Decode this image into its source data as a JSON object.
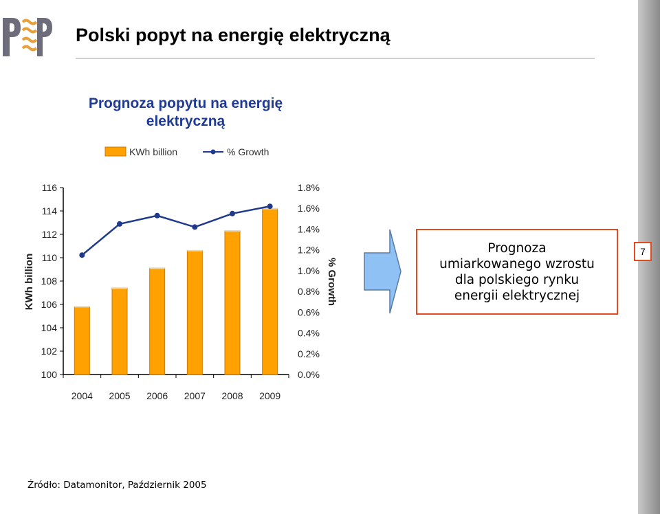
{
  "header": {
    "title": "Polski popyt na energię elektryczną"
  },
  "logo": {
    "icon": "pap-logo-icon"
  },
  "chart_data": {
    "type": "bar",
    "title_lines": [
      "Prognoza popytu na energię",
      "elektryczną"
    ],
    "categories": [
      "2004",
      "2005",
      "2006",
      "2007",
      "2008",
      "2009"
    ],
    "series": [
      {
        "name": "KWh billion",
        "type": "bar",
        "axis": "left",
        "values": [
          105.8,
          107.4,
          109.1,
          110.6,
          112.3,
          114.2
        ]
      },
      {
        "name": "% Growth",
        "type": "line",
        "axis": "right",
        "values": [
          1.15,
          1.45,
          1.53,
          1.42,
          1.55,
          1.62
        ]
      }
    ],
    "ylabel": "KWh billion",
    "ylabel_right": "% Growth",
    "ylim": [
      100,
      116
    ],
    "ylim_right": [
      0,
      1.8
    ],
    "yticks": [
      "100",
      "102",
      "104",
      "106",
      "108",
      "110",
      "112",
      "114",
      "116"
    ],
    "yticks_right": [
      "0.0%",
      "0.2%",
      "0.4%",
      "0.6%",
      "0.8%",
      "1.0%",
      "1.2%",
      "1.4%",
      "1.6%",
      "1.8%"
    ],
    "legend_position": "top",
    "grid": false,
    "colors": {
      "bar_fill": "#ffa100",
      "bar_edge": "#cc7a00",
      "line": "#1f3a8a",
      "title": "#1f3a93"
    }
  },
  "callout": {
    "lines": [
      "Prognoza",
      "umiarkowanego wzrostu",
      "dla polskiego rynku",
      "energii elektrycznej"
    ],
    "border_color": "#e34a1e",
    "arrow_color": "#8fc1f5"
  },
  "page_number": "7",
  "source": "Źródło: Datamonitor, Październik 2005"
}
